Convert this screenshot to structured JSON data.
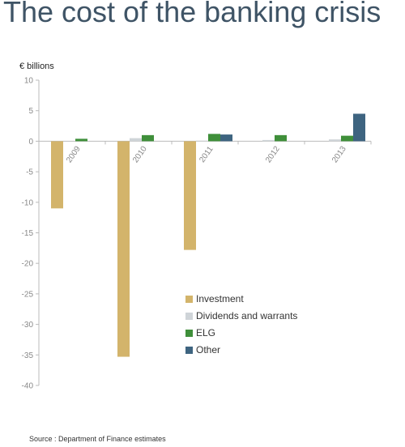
{
  "title": "The cost of the banking crisis",
  "source": "Source : Department of Finance estimates",
  "chart_data": {
    "type": "bar",
    "title": "The cost of the banking crisis",
    "ylabel": "€ billions",
    "xlabel": "",
    "ylim": [
      -40,
      10
    ],
    "yticks": [
      10,
      5,
      0,
      -5,
      -10,
      -15,
      -20,
      -25,
      -30,
      -35,
      -40
    ],
    "categories": [
      "2009",
      "2010",
      "2011",
      "2012",
      "2013"
    ],
    "grid": false,
    "legend_position": "lower-right",
    "series": [
      {
        "name": "Investment",
        "color": "#d3b46b",
        "values": [
          -11,
          -35.3,
          -17.8,
          0,
          0
        ]
      },
      {
        "name": "Dividends and warrants",
        "color": "#cfd4d8",
        "values": [
          0,
          0.5,
          0.1,
          0.2,
          0.3
        ]
      },
      {
        "name": "ELG",
        "color": "#3f8f3a",
        "values": [
          0.4,
          1.0,
          1.2,
          1.0,
          0.9
        ]
      },
      {
        "name": "Other",
        "color": "#3e6480",
        "values": [
          0,
          0,
          1.1,
          0,
          4.5
        ]
      }
    ]
  }
}
